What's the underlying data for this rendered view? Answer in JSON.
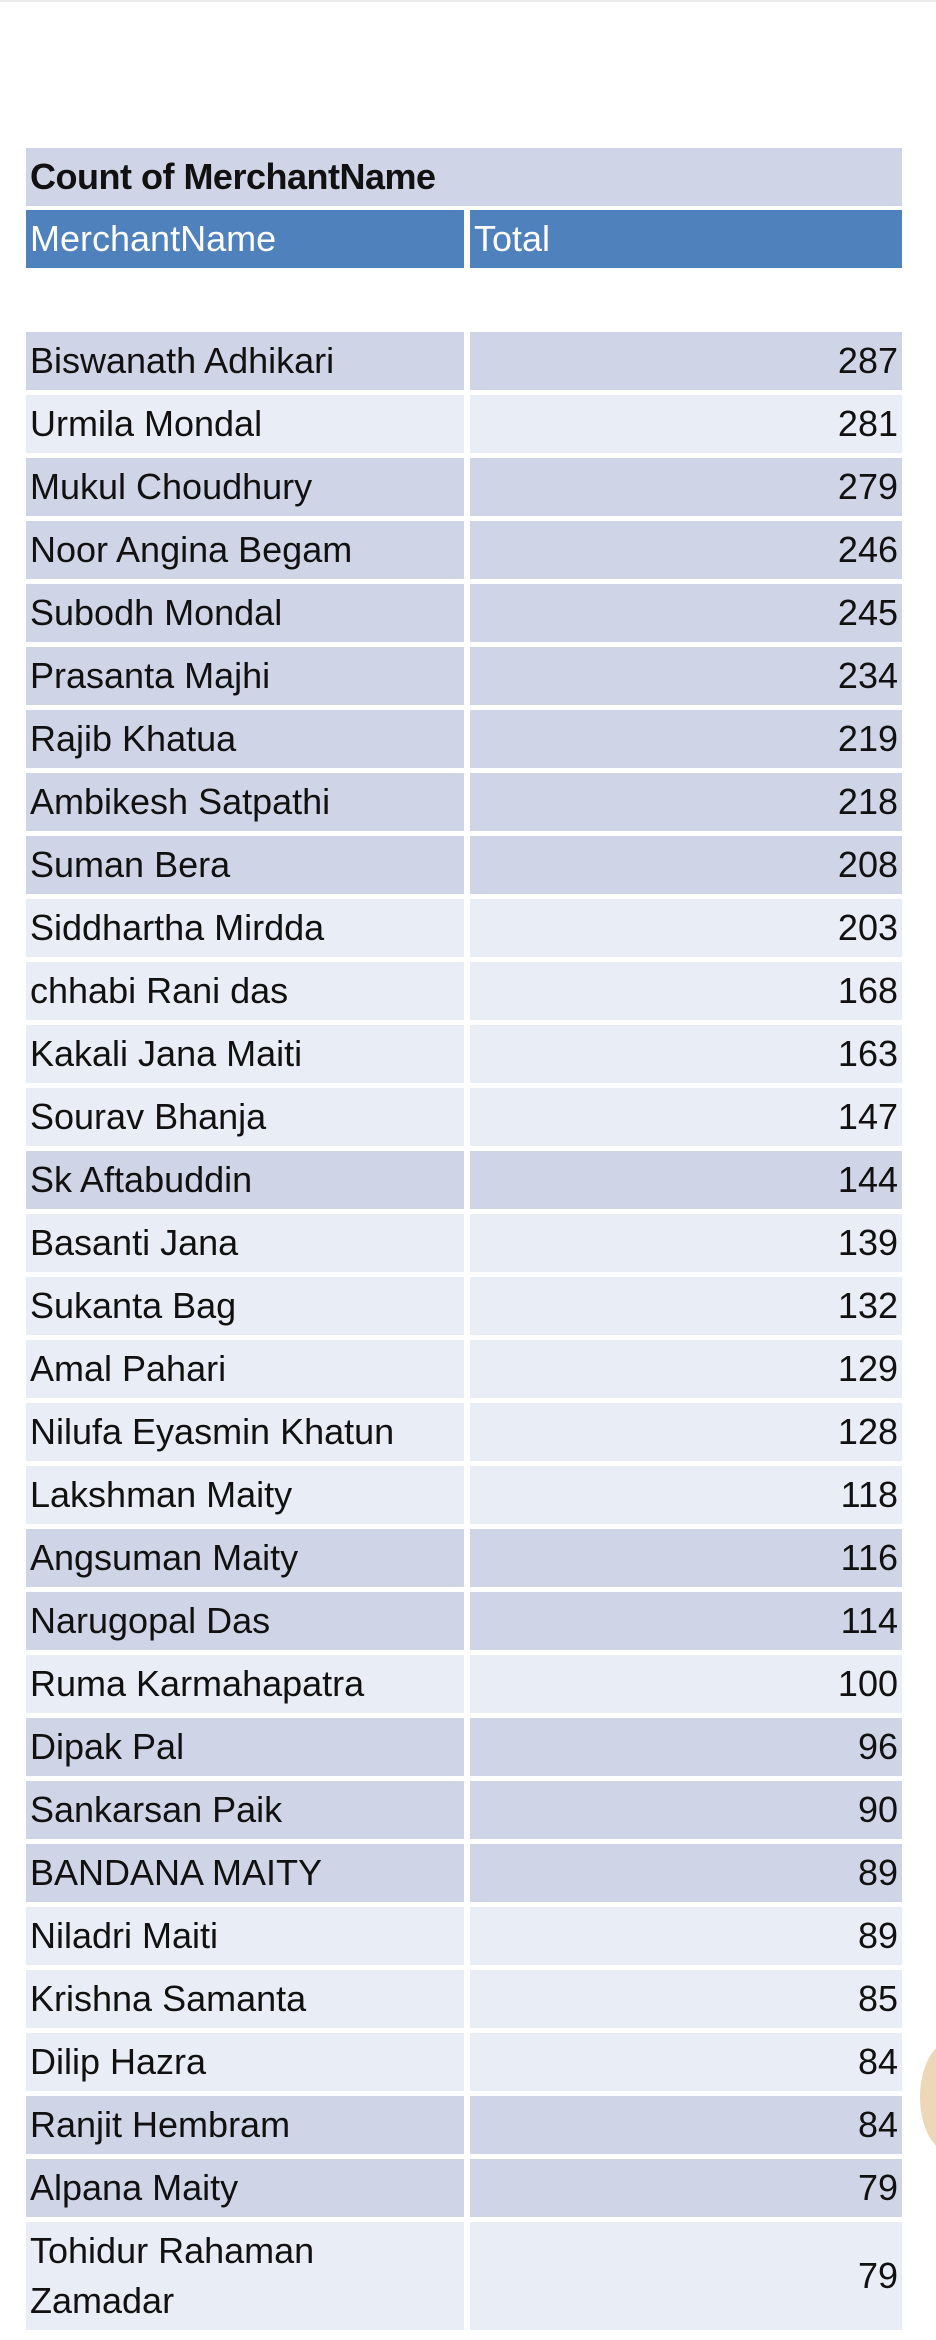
{
  "table": {
    "title": "Count of MerchantName",
    "headers": [
      "MerchantName",
      "Total"
    ],
    "rows": [
      {
        "name": "Biswanath Adhikari",
        "total": "287",
        "shade": "dark"
      },
      {
        "name": "Urmila Mondal",
        "total": "281",
        "shade": "light"
      },
      {
        "name": "Mukul Choudhury",
        "total": "279",
        "shade": "dark"
      },
      {
        "name": "Noor Angina Begam",
        "total": "246",
        "shade": "dark"
      },
      {
        "name": "Subodh Mondal",
        "total": "245",
        "shade": "dark"
      },
      {
        "name": "Prasanta Majhi",
        "total": "234",
        "shade": "dark"
      },
      {
        "name": "Rajib Khatua",
        "total": "219",
        "shade": "dark"
      },
      {
        "name": "Ambikesh Satpathi",
        "total": "218",
        "shade": "dark"
      },
      {
        "name": "Suman Bera",
        "total": "208",
        "shade": "dark"
      },
      {
        "name": "Siddhartha Mirdda",
        "total": "203",
        "shade": "light"
      },
      {
        "name": "chhabi Rani das",
        "total": "168",
        "shade": "light"
      },
      {
        "name": "Kakali Jana Maiti",
        "total": "163",
        "shade": "light"
      },
      {
        "name": "Sourav Bhanja",
        "total": "147",
        "shade": "light"
      },
      {
        "name": "Sk Aftabuddin",
        "total": "144",
        "shade": "dark"
      },
      {
        "name": "Basanti Jana",
        "total": "139",
        "shade": "light"
      },
      {
        "name": "Sukanta Bag",
        "total": "132",
        "shade": "light"
      },
      {
        "name": "Amal Pahari",
        "total": "129",
        "shade": "light"
      },
      {
        "name": "Nilufa Eyasmin Khatun",
        "total": "128",
        "shade": "light"
      },
      {
        "name": "Lakshman Maity",
        "total": "118",
        "shade": "light"
      },
      {
        "name": "Angsuman Maity",
        "total": "116",
        "shade": "dark"
      },
      {
        "name": "Narugopal Das",
        "total": "114",
        "shade": "dark"
      },
      {
        "name": "Ruma Karmahapatra",
        "total": "100",
        "shade": "light"
      },
      {
        "name": "Dipak Pal",
        "total": "96",
        "shade": "dark"
      },
      {
        "name": "Sankarsan Paik",
        "total": "90",
        "shade": "dark"
      },
      {
        "name": "BANDANA MAITY",
        "total": "89",
        "shade": "dark"
      },
      {
        "name": "Niladri Maiti",
        "total": "89",
        "shade": "light"
      },
      {
        "name": "Krishna Samanta",
        "total": "85",
        "shade": "light"
      },
      {
        "name": "Dilip Hazra",
        "total": "84",
        "shade": "light"
      },
      {
        "name": "Ranjit Hembram",
        "total": "84",
        "shade": "dark"
      },
      {
        "name": "Alpana Maity",
        "total": "79",
        "shade": "dark"
      },
      {
        "name": "Tohidur Rahaman Zamadar",
        "total": "79",
        "shade": "light",
        "tall": true
      }
    ]
  },
  "colors": {
    "header_blue": "#4f81bd",
    "row_dark": "#cfd5e6",
    "row_light": "#e9edf5"
  }
}
